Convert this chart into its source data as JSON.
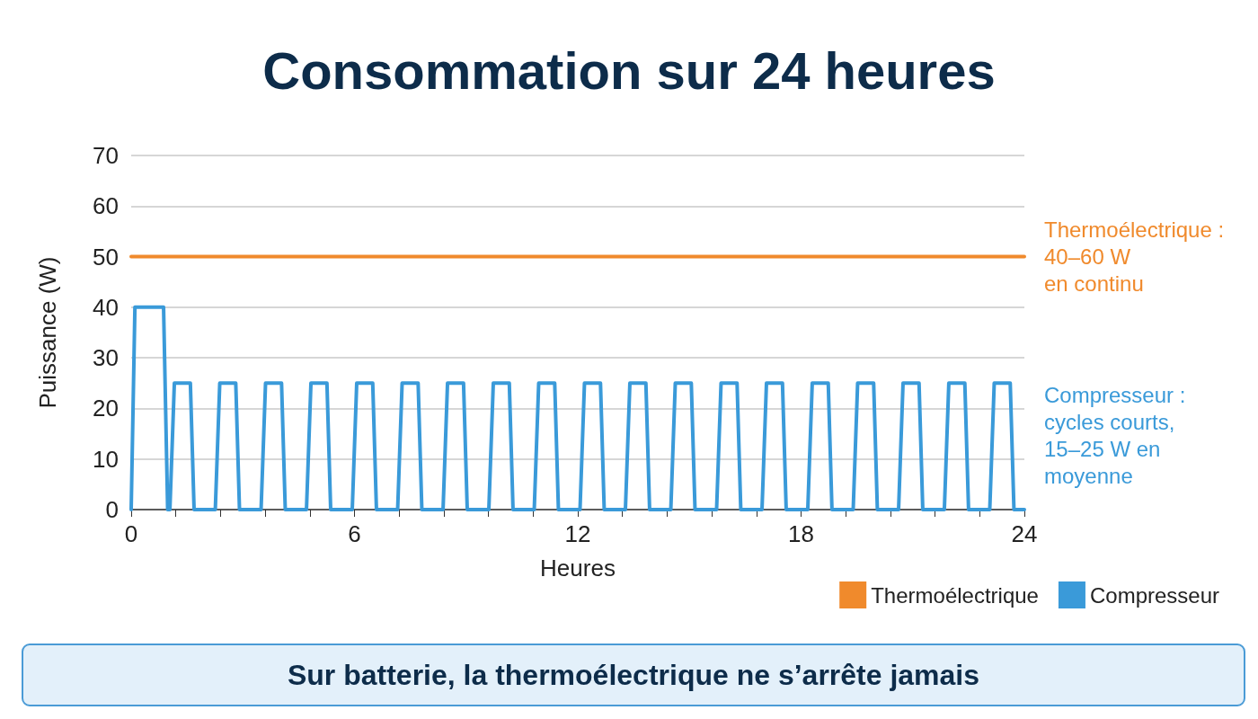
{
  "chart_data": {
    "type": "line",
    "title": "Consommation sur 24 heures",
    "xlabel": "Heures",
    "ylabel": "Puissance (W)",
    "xlim": [
      0,
      24
    ],
    "ylim": [
      0,
      70
    ],
    "xticks": [
      0,
      {
        "value": 1.2,
        "label": null
      },
      {
        "value": 2.4,
        "label": null
      },
      {
        "value": 3.6,
        "label": null
      },
      {
        "value": 4.8,
        "label": null
      },
      6,
      {
        "value": 7.2,
        "label": null
      },
      {
        "value": 8.4,
        "label": null
      },
      {
        "value": 9.6,
        "label": null
      },
      {
        "value": 10.8,
        "label": null
      },
      12,
      {
        "value": 13.2,
        "label": null
      },
      {
        "value": 14.4,
        "label": null
      },
      {
        "value": 15.6,
        "label": null
      },
      {
        "value": 16.8,
        "label": null
      },
      18,
      {
        "value": 19.2,
        "label": null
      },
      {
        "value": 20.4,
        "label": null
      },
      {
        "value": 21.6,
        "label": null
      },
      {
        "value": 22.8,
        "label": null
      },
      24
    ],
    "yticks": [
      0,
      10,
      20,
      30,
      40,
      50,
      60,
      70
    ],
    "grid": "y",
    "legend": "bottom right",
    "marker": "none",
    "line_style": "solid",
    "series": [
      {
        "name": "Thermoélectrique",
        "color": "#f08a2c",
        "x": [
          0,
          24
        ],
        "values": [
          50,
          50
        ]
      },
      {
        "name": "Compresseur",
        "color": "#3a9ad9",
        "x": [
          0,
          0.1,
          0.87,
          0.98,
          1.04,
          1.16,
          1.59,
          1.69,
          2.26,
          2.38,
          2.81,
          2.91,
          3.49,
          3.61,
          4.04,
          4.14,
          4.71,
          4.83,
          5.26,
          5.36,
          5.94,
          6.06,
          6.49,
          6.59,
          7.16,
          7.28,
          7.71,
          7.81,
          8.38,
          8.5,
          8.93,
          9.03,
          9.61,
          9.73,
          10.16,
          10.26,
          10.83,
          10.95,
          11.38,
          11.48,
          12.06,
          12.18,
          12.61,
          12.71,
          13.28,
          13.4,
          13.83,
          13.93,
          14.5,
          14.62,
          15.05,
          15.15,
          15.73,
          15.85,
          16.28,
          16.38,
          16.95,
          17.07,
          17.5,
          17.6,
          18.18,
          18.3,
          18.73,
          18.83,
          19.4,
          19.52,
          19.95,
          20.05,
          20.62,
          20.74,
          21.17,
          21.27,
          21.85,
          21.97,
          22.4,
          22.5,
          23.07,
          23.19,
          23.62,
          23.72,
          24
        ],
        "values": [
          0,
          40,
          40,
          0,
          0,
          25,
          25,
          0,
          0,
          25,
          25,
          0,
          0,
          25,
          25,
          0,
          0,
          25,
          25,
          0,
          0,
          25,
          25,
          0,
          0,
          25,
          25,
          0,
          0,
          25,
          25,
          0,
          0,
          25,
          25,
          0,
          0,
          25,
          25,
          0,
          0,
          25,
          25,
          0,
          0,
          25,
          25,
          0,
          0,
          25,
          25,
          0,
          0,
          25,
          25,
          0,
          0,
          25,
          25,
          0,
          0,
          25,
          25,
          0,
          0,
          25,
          25,
          0,
          0,
          25,
          25,
          0,
          0,
          25,
          25,
          0,
          0,
          25,
          25,
          0,
          0
        ]
      }
    ],
    "annotations": [
      {
        "text": "Thermoélectrique :\n40–60 W\nen continu",
        "x": 24,
        "y": 50
      },
      "Compresseur :\ncycles courts,\n15–25 W en\nmoyenne",
      "Sur batterie, la thermoélectrique ne s’arrête jamais"
    ]
  }
}
